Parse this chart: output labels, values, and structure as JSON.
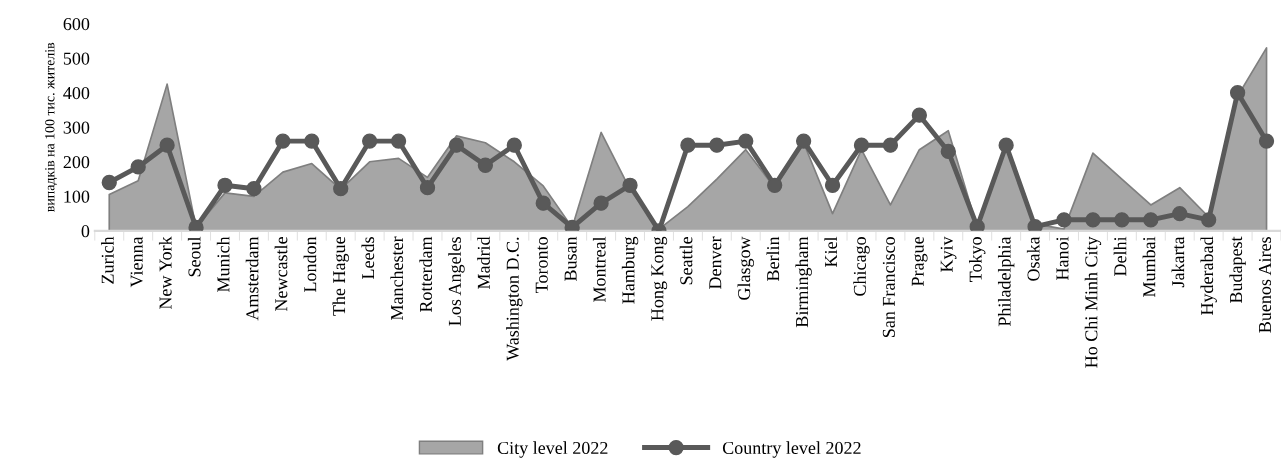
{
  "chart_data": {
    "type": "area",
    "ylabel": "випадків на 100 тис. жителів",
    "ylim": [
      0,
      600
    ],
    "yticks": [
      0,
      100,
      200,
      300,
      400,
      500,
      600
    ],
    "grid": false,
    "legend": "bottom",
    "categories": [
      "Zurich",
      "Vienna",
      "New York",
      "Seoul",
      "Munich",
      "Amsterdam",
      "Newcastle",
      "London",
      "The Hague",
      "Leeds",
      "Manchester",
      "Rotterdam",
      "Los Angeles",
      "Madrid",
      "Washington D.C.",
      "Toronto",
      "Busan",
      "Montreal",
      "Hamburg",
      "Hong Kong",
      "Seattle",
      "Denver",
      "Glasgow",
      "Berlin",
      "Birmingham",
      "Kiel",
      "Chicago",
      "San Francisco",
      "Prague",
      "Kyiv",
      "Tokyo",
      "Philadelphia",
      "Osaka",
      "Hanoi",
      "Ho Chi Minh City",
      "Delhi",
      "Mumbai",
      "Jakarta",
      "Hyderabad",
      "Budapest",
      "Buenos Aires"
    ],
    "series": [
      {
        "name": "City level 2022",
        "color": "#a6a6a6",
        "values": [
          105,
          145,
          425,
          10,
          110,
          100,
          170,
          195,
          120,
          200,
          210,
          155,
          275,
          255,
          200,
          130,
          10,
          285,
          120,
          5,
          70,
          150,
          235,
          125,
          255,
          50,
          235,
          75,
          235,
          290,
          10,
          240,
          20,
          5,
          225,
          150,
          75,
          125,
          40,
          390,
          530
        ]
      },
      {
        "name": "Country level 2022",
        "type": "line",
        "color": "#595959",
        "marker": "circle",
        "values": [
          140,
          185,
          248,
          10,
          132,
          122,
          260,
          260,
          122,
          260,
          260,
          125,
          248,
          190,
          248,
          80,
          10,
          80,
          132,
          0,
          248,
          248,
          260,
          132,
          260,
          132,
          248,
          248,
          335,
          230,
          12,
          248,
          12,
          32,
          32,
          32,
          32,
          50,
          32,
          400,
          260
        ]
      }
    ]
  }
}
